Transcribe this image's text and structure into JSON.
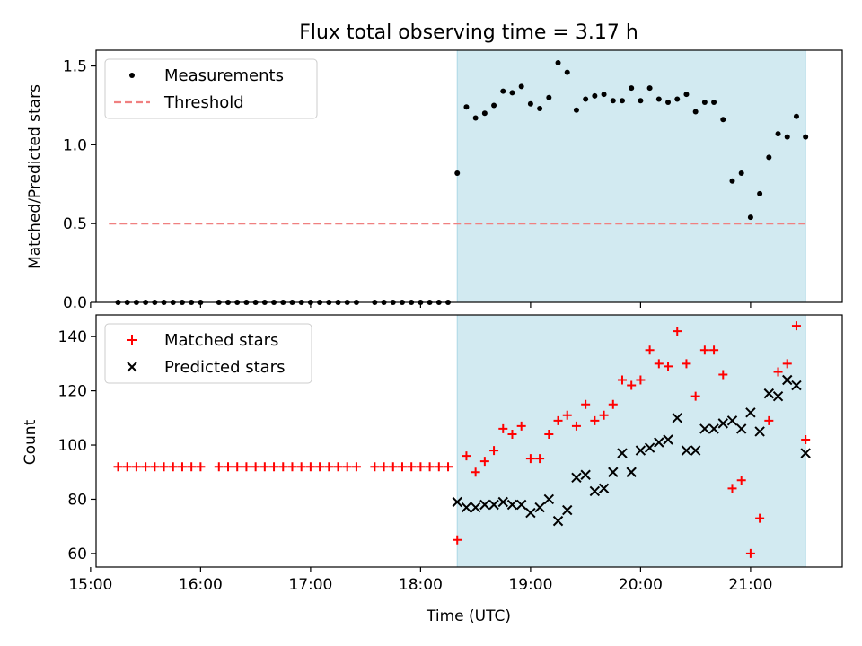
{
  "title": "Flux total observing time = 3.17 h",
  "colors": {
    "shade": "#add8e6",
    "threshold": "#f08080",
    "matched": "#ff0000",
    "predicted": "#000000",
    "measurement": "#000000"
  },
  "chart_data": [
    {
      "type": "scatter",
      "ylabel": "Matched/Predicted stars",
      "ylim": [
        0,
        1.6
      ],
      "yticks": [
        0.0,
        0.5,
        1.0,
        1.5
      ],
      "ytick_labels": [
        "0.0",
        "0.5",
        "1.0",
        "1.5"
      ],
      "xlim": [
        "15:03",
        "21:50"
      ],
      "shaded_interval": [
        "18:20",
        "21:30"
      ],
      "legend_position": "top-left",
      "legend": [
        "Measurements",
        "Threshold"
      ],
      "threshold": {
        "name": "Threshold",
        "value": 0.5,
        "x_range": [
          "15:10",
          "21:30"
        ]
      },
      "series": [
        {
          "name": "Measurements",
          "x": [
            "15:15",
            "15:20",
            "15:25",
            "15:30",
            "15:35",
            "15:40",
            "15:45",
            "15:50",
            "15:55",
            "16:00",
            "16:10",
            "16:15",
            "16:20",
            "16:25",
            "16:30",
            "16:35",
            "16:40",
            "16:45",
            "16:50",
            "16:55",
            "17:00",
            "17:05",
            "17:10",
            "17:15",
            "17:20",
            "17:25",
            "17:35",
            "17:40",
            "17:45",
            "17:50",
            "17:55",
            "18:00",
            "18:05",
            "18:10",
            "18:15",
            "18:20",
            "18:25",
            "18:30",
            "18:35",
            "18:40",
            "18:45",
            "18:50",
            "18:55",
            "19:00",
            "19:05",
            "19:10",
            "19:15",
            "19:20",
            "19:25",
            "19:30",
            "19:35",
            "19:40",
            "19:45",
            "19:50",
            "19:55",
            "20:00",
            "20:05",
            "20:10",
            "20:15",
            "20:20",
            "20:25",
            "20:30",
            "20:35",
            "20:40",
            "20:45",
            "20:50",
            "20:55",
            "21:00",
            "21:05",
            "21:10",
            "21:15",
            "21:20",
            "21:25",
            "21:30"
          ],
          "y": [
            0,
            0,
            0,
            0,
            0,
            0,
            0,
            0,
            0,
            0,
            0,
            0,
            0,
            0,
            0,
            0,
            0,
            0,
            0,
            0,
            0,
            0,
            0,
            0,
            0,
            0,
            0,
            0,
            0,
            0,
            0,
            0,
            0,
            0,
            0,
            0.82,
            1.24,
            1.17,
            1.2,
            1.25,
            1.34,
            1.33,
            1.37,
            1.26,
            1.23,
            1.3,
            1.52,
            1.46,
            1.22,
            1.29,
            1.31,
            1.32,
            1.28,
            1.28,
            1.36,
            1.28,
            1.36,
            1.29,
            1.27,
            1.29,
            1.32,
            1.21,
            1.27,
            1.27,
            1.16,
            0.77,
            0.82,
            0.54,
            0.69,
            0.92,
            1.07,
            1.05,
            1.18,
            1.05
          ]
        }
      ]
    },
    {
      "type": "scatter",
      "xlabel": "Time (UTC)",
      "ylabel": "Count",
      "ylim": [
        55,
        148
      ],
      "yticks": [
        60,
        80,
        100,
        120,
        140
      ],
      "ytick_labels": [
        "60",
        "80",
        "100",
        "120",
        "140"
      ],
      "xlim": [
        "15:03",
        "21:50"
      ],
      "xticks": [
        "15:00",
        "16:00",
        "17:00",
        "18:00",
        "19:00",
        "20:00",
        "21:00"
      ],
      "xtick_labels": [
        "15:00",
        "16:00",
        "17:00",
        "18:00",
        "19:00",
        "20:00",
        "21:00"
      ],
      "shaded_interval": [
        "18:20",
        "21:30"
      ],
      "legend_position": "top-left",
      "legend": [
        "Matched stars",
        "Predicted stars"
      ],
      "series": [
        {
          "name": "Matched stars",
          "marker": "plus",
          "x": [
            "15:15",
            "15:20",
            "15:25",
            "15:30",
            "15:35",
            "15:40",
            "15:45",
            "15:50",
            "15:55",
            "16:00",
            "16:10",
            "16:15",
            "16:20",
            "16:25",
            "16:30",
            "16:35",
            "16:40",
            "16:45",
            "16:50",
            "16:55",
            "17:00",
            "17:05",
            "17:10",
            "17:15",
            "17:20",
            "17:25",
            "17:35",
            "17:40",
            "17:45",
            "17:50",
            "17:55",
            "18:00",
            "18:05",
            "18:10",
            "18:15",
            "18:20",
            "18:25",
            "18:30",
            "18:35",
            "18:40",
            "18:45",
            "18:50",
            "18:55",
            "19:00",
            "19:05",
            "19:10",
            "19:15",
            "19:20",
            "19:25",
            "19:30",
            "19:35",
            "19:40",
            "19:45",
            "19:50",
            "19:55",
            "20:00",
            "20:05",
            "20:10",
            "20:15",
            "20:20",
            "20:25",
            "20:30",
            "20:35",
            "20:40",
            "20:45",
            "20:50",
            "20:55",
            "21:00",
            "21:05",
            "21:10",
            "21:15",
            "21:20",
            "21:25",
            "21:30"
          ],
          "y": [
            92,
            92,
            92,
            92,
            92,
            92,
            92,
            92,
            92,
            92,
            92,
            92,
            92,
            92,
            92,
            92,
            92,
            92,
            92,
            92,
            92,
            92,
            92,
            92,
            92,
            92,
            92,
            92,
            92,
            92,
            92,
            92,
            92,
            92,
            92,
            65,
            96,
            90,
            94,
            98,
            106,
            104,
            107,
            95,
            95,
            104,
            109,
            111,
            107,
            115,
            109,
            111,
            115,
            124,
            122,
            124,
            135,
            130,
            129,
            142,
            130,
            118,
            135,
            135,
            126,
            84,
            87,
            60,
            73,
            109,
            127,
            130,
            144,
            102
          ]
        },
        {
          "name": "Predicted stars",
          "marker": "x",
          "x": [
            "18:20",
            "18:25",
            "18:30",
            "18:35",
            "18:40",
            "18:45",
            "18:50",
            "18:55",
            "19:00",
            "19:05",
            "19:10",
            "19:15",
            "19:20",
            "19:25",
            "19:30",
            "19:35",
            "19:40",
            "19:45",
            "19:50",
            "19:55",
            "20:00",
            "20:05",
            "20:10",
            "20:15",
            "20:20",
            "20:25",
            "20:30",
            "20:35",
            "20:40",
            "20:45",
            "20:50",
            "20:55",
            "21:00",
            "21:05",
            "21:10",
            "21:15",
            "21:20",
            "21:25",
            "21:30"
          ],
          "y": [
            79,
            77,
            77,
            78,
            78,
            79,
            78,
            78,
            75,
            77,
            80,
            72,
            76,
            88,
            89,
            83,
            84,
            90,
            97,
            90,
            98,
            99,
            101,
            102,
            110,
            98,
            98,
            106,
            106,
            108,
            109,
            106,
            112,
            105,
            119,
            118,
            124,
            122,
            97
          ]
        }
      ]
    }
  ]
}
